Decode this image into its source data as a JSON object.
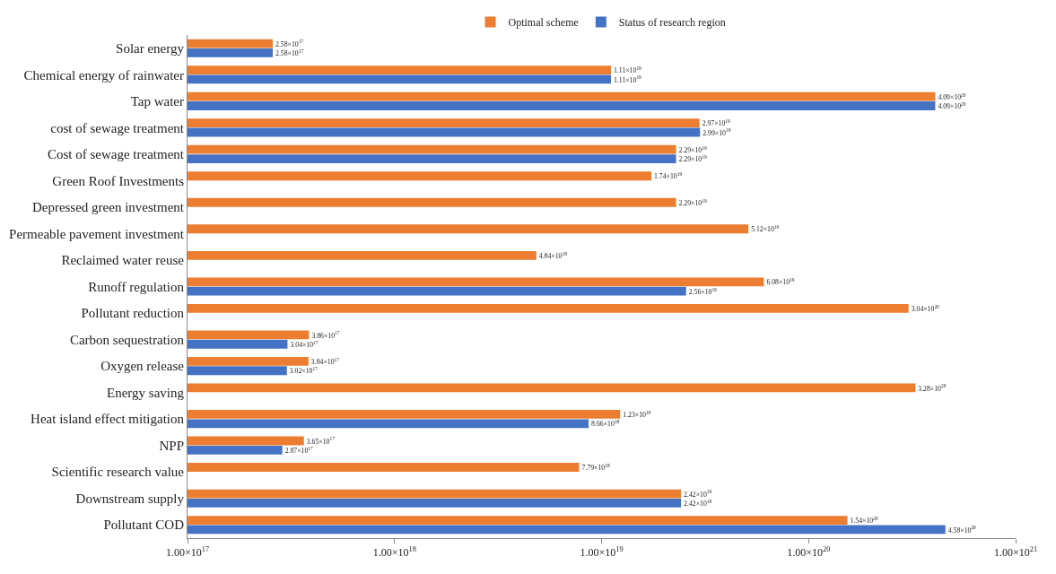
{
  "chart_data": {
    "type": "bar",
    "orientation": "horizontal",
    "log": "x",
    "legend": "top",
    "data_labels": true,
    "categories": [
      "Solar energy",
      "Chemical energy of rainwater",
      "Tap water",
      "cost of sewage treatment",
      "Cost of sewage treatment",
      "Green Roof Investments",
      "Depressed green investment",
      "Permeable pavement investment",
      "Reclaimed water reuse",
      "Runoff regulation",
      "Pollutant reduction",
      "Carbon sequestration",
      "Oxygen release",
      "Energy saving",
      "Heat island effect mitigation",
      "NPP",
      "Scientific research value",
      "Downstream supply",
      "Pollutant COD"
    ],
    "series": [
      {
        "name": "Optimal scheme",
        "color": "#ed7d31",
        "values": [
          2.58e+17,
          1.11e+19,
          4.09e+20,
          2.97e+19,
          2.29e+19,
          1.74e+19,
          2.29e+19,
          5.12e+19,
          4.84e+18,
          6.08e+19,
          3.04e+20,
          3.86e+17,
          3.84e+17,
          3.28e+20,
          1.23e+19,
          3.65e+17,
          7.79e+18,
          2.42e+19,
          1.54e+20
        ],
        "value_labels": [
          "2.58×10$^{17}$",
          "1.11×10$^{19}$",
          "4.09×10$^{20}$",
          "2.97×10$^{19}$",
          "2.29×10$^{19}$",
          "1.74×10$^{19}$",
          "2.29×10$^{19}$",
          "5.12×10$^{19}$",
          "4.84×10$^{18}$",
          "6.08×10$^{19}$",
          "3.04×10$^{20}$",
          "3.86×10$^{17}$",
          "3.84×10$^{17}$",
          "3.28×10$^{20}$",
          "1.23×10$^{19}$",
          "3.65×10$^{17}$",
          "7.79×10$^{18}$",
          "2.42×10$^{19}$",
          "1.54×10$^{20}$"
        ]
      },
      {
        "name": "Status of research region",
        "color": "#4472c4",
        "values": [
          2.58e+17,
          1.11e+19,
          4.09e+20,
          2.99e+19,
          2.29e+19,
          null,
          null,
          null,
          null,
          2.56e+19,
          null,
          3.04e+17,
          3.02e+17,
          null,
          8.66e+18,
          2.87e+17,
          null,
          2.42e+19,
          4.58e+20
        ],
        "value_labels": [
          "2.58×10$^{17}$",
          "1.11×10$^{19}$",
          "4.09×10$^{20}$",
          "2.99×10$^{19}$",
          "2.29×10$^{19}$",
          null,
          null,
          null,
          null,
          "2.56×10$^{19}$",
          null,
          "3.04×10$^{17}$",
          "3.02×10$^{17}$",
          null,
          "8.66×10$^{18}$",
          "2.87×10$^{17}$",
          null,
          "2.42×10$^{19}$",
          "4.58×10$^{20}$"
        ]
      }
    ],
    "xlim": [
      1e+17,
      1e+21
    ],
    "xticks": [
      {
        "value": 1e+17,
        "label": "1.00×10$^{17}$"
      },
      {
        "value": 1e+18,
        "label": "1.00×10$^{18}$"
      },
      {
        "value": 1e+19,
        "label": "1.00×10$^{19}$"
      },
      {
        "value": 1e+20,
        "label": "1.00×10$^{20}$"
      },
      {
        "value": 1e+21,
        "label": "1.00×10$^{21}$"
      }
    ]
  }
}
